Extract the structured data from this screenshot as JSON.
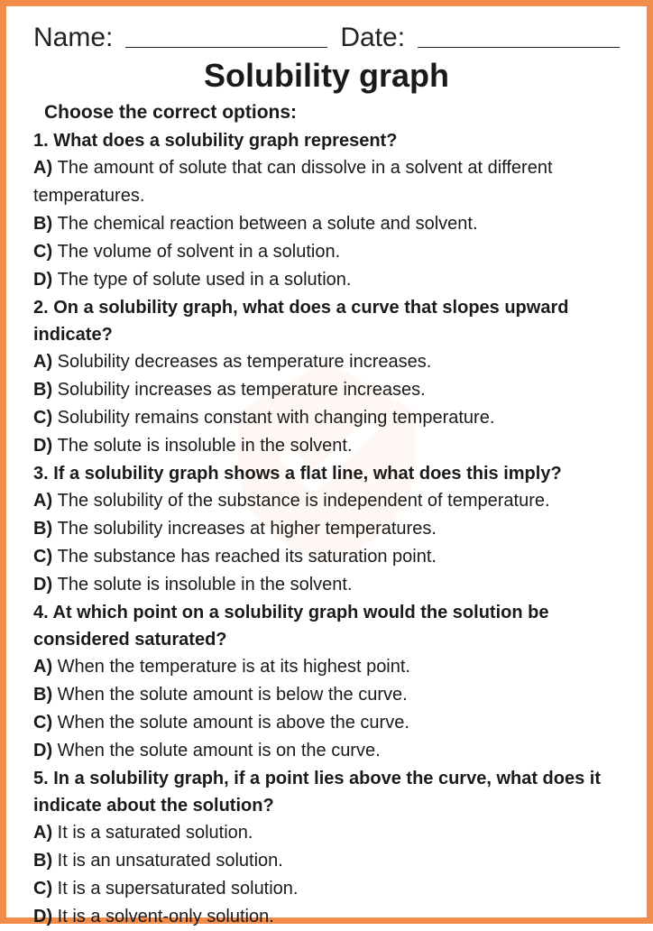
{
  "header": {
    "name_label": "Name:",
    "date_label": "Date:"
  },
  "title": "Solubility graph",
  "instructions": "Choose the correct options:",
  "questions": [
    {
      "q": "1. What does a solubility graph represent?",
      "a": "The amount of solute that can dissolve in a solvent at different temperatures.",
      "b": "The chemical reaction between a solute and solvent.",
      "c": "The volume of solvent in a solution.",
      "d": "The type of solute used in a solution."
    },
    {
      "q": "2. On a solubility graph, what does a curve that slopes upward indicate?",
      "a": "Solubility decreases as temperature increases.",
      "b": "Solubility increases as temperature increases.",
      "c": "Solubility remains constant with changing temperature.",
      "d": "The solute is insoluble in the solvent."
    },
    {
      "q": "3. If a solubility graph shows a flat line, what does this imply?",
      "a": "The solubility of the substance is independent of temperature.",
      "b": "The solubility increases at higher temperatures.",
      "c": "The substance has reached its saturation point.",
      "d": "The solute is insoluble in the solvent."
    },
    {
      "q": "4. At which point on a solubility graph would the solution be considered saturated?",
      "a": "When the temperature is at its highest point.",
      "b": "When the solute amount is below the curve.",
      "c": "When the solute amount is above the curve.",
      "d": "When the solute amount is on the curve."
    },
    {
      "q": "5. In a solubility graph, if a point lies above the curve, what does it indicate about the solution?",
      "a": "It is a saturated solution.",
      "b": "It is an unsaturated solution.",
      "c": "It is a supersaturated solution.",
      "d": "It is a solvent-only solution."
    }
  ],
  "letters": {
    "a": "A) ",
    "b": "B) ",
    "c": "C) ",
    "d": "D) "
  },
  "colors": {
    "border": "#f28c4a",
    "text": "#1a1a1a",
    "background": "#ffffff"
  }
}
